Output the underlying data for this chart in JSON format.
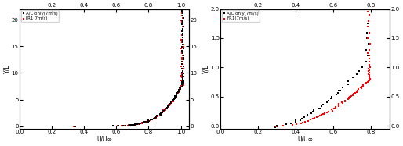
{
  "left_plot": {
    "legend": [
      "A/C only(7m/s)",
      "FR1(7m/s)"
    ],
    "legend_colors": [
      "black",
      "red"
    ],
    "xlabel": "U/U∞",
    "ylabel": "Y/L",
    "xlim": [
      0,
      1.05
    ],
    "ylim": [
      -0.5,
      22
    ],
    "xticks_bottom": [
      0,
      0.2,
      0.4,
      0.6,
      0.8,
      1.0
    ],
    "xticks_top": [
      0.2,
      0.4,
      0.6,
      0.8,
      1.0
    ],
    "yticks_left": [
      0,
      5,
      10,
      15,
      20
    ],
    "yticks_right": [
      0,
      5,
      10,
      15,
      20
    ]
  },
  "right_plot": {
    "legend": [
      "A/C only(7m/s)",
      "FR1(7m/s)"
    ],
    "legend_colors": [
      "black",
      "red"
    ],
    "xlabel": "U/U∞",
    "ylabel": "Y/L",
    "xlim": [
      0,
      0.9
    ],
    "ylim": [
      -0.05,
      2.0
    ],
    "xticks_bottom": [
      0,
      0.2,
      0.4,
      0.6,
      0.8
    ],
    "xticks_top": [
      0.2,
      0.4,
      0.6,
      0.8
    ],
    "yticks_left": [
      0,
      0.5,
      1.0,
      1.5,
      2.0
    ],
    "yticks_right": [
      0,
      0.5,
      1.0,
      1.5,
      2.0
    ]
  }
}
